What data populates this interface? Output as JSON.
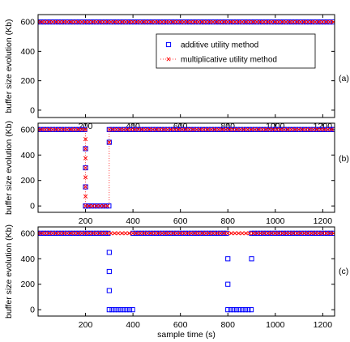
{
  "chart_data": [
    {
      "type": "scatter",
      "panel_label": "(a)",
      "xlim": [
        0,
        1250
      ],
      "ylim": [
        -50,
        650
      ],
      "xticks": [
        200,
        400,
        600,
        800,
        1000,
        1200
      ],
      "yticks": [
        0,
        200,
        400,
        600
      ],
      "ylabel": "buffer size evolution (Kb)",
      "xlabel": "",
      "legend": {
        "placement": "top-right",
        "entries": [
          "additive utility method",
          "multiplicative utility method"
        ]
      },
      "series": [
        {
          "name": "additive utility method",
          "marker": "square",
          "color": "#0000ff",
          "segments": [
            {
              "x": [
                0,
                1250
              ],
              "y": 600
            }
          ],
          "points": []
        },
        {
          "name": "multiplicative utility method",
          "marker": "x",
          "color": "#ff0000",
          "segments": [
            {
              "x": [
                0,
                1250
              ],
              "y": 600
            }
          ],
          "points": []
        }
      ]
    },
    {
      "type": "scatter",
      "panel_label": "(b)",
      "xlim": [
        0,
        1250
      ],
      "ylim": [
        -50,
        650
      ],
      "xticks": [
        200,
        400,
        600,
        800,
        1000,
        1200
      ],
      "yticks": [
        0,
        200,
        400,
        600
      ],
      "ylabel": "buffer size evolution (Kb)",
      "xlabel": "",
      "series": [
        {
          "name": "additive utility method",
          "marker": "square",
          "color": "#0000ff",
          "segments": [
            {
              "x": [
                0,
                200
              ],
              "y": 600
            },
            {
              "x": [
                200,
                300
              ],
              "y": 0
            },
            {
              "x": [
                300,
                1250
              ],
              "y": 600
            }
          ],
          "points": [
            [
              200,
              450
            ],
            [
              200,
              300
            ],
            [
              200,
              150
            ],
            [
              200,
              0
            ],
            [
              300,
              500
            ]
          ]
        },
        {
          "name": "multiplicative utility method",
          "marker": "x",
          "color": "#ff0000",
          "segments": [
            {
              "x": [
                0,
                200
              ],
              "y": 600
            },
            {
              "x": [
                200,
                300
              ],
              "y": 0
            },
            {
              "x": [
                300,
                1250
              ],
              "y": 600
            }
          ],
          "points": [
            [
              200,
              525
            ],
            [
              200,
              450
            ],
            [
              200,
              375
            ],
            [
              200,
              300
            ],
            [
              200,
              225
            ],
            [
              200,
              150
            ],
            [
              200,
              75
            ],
            [
              300,
              500
            ]
          ]
        }
      ]
    },
    {
      "type": "scatter",
      "panel_label": "(c)",
      "xlim": [
        0,
        1250
      ],
      "ylim": [
        -50,
        650
      ],
      "xticks": [
        200,
        400,
        600,
        800,
        1000,
        1200
      ],
      "yticks": [
        0,
        200,
        400,
        600
      ],
      "ylabel": "buffer size evolution (Kb)",
      "xlabel": "sample time (s)",
      "series": [
        {
          "name": "additive utility method",
          "marker": "square",
          "color": "#0000ff",
          "segments": [
            {
              "x": [
                0,
                300
              ],
              "y": 600
            },
            {
              "x": [
                300,
                400
              ],
              "y": 0
            },
            {
              "x": [
                400,
                800
              ],
              "y": 600
            },
            {
              "x": [
                800,
                900
              ],
              "y": 0
            },
            {
              "x": [
                900,
                1250
              ],
              "y": 600
            }
          ],
          "points": [
            [
              300,
              450
            ],
            [
              300,
              300
            ],
            [
              300,
              150
            ],
            [
              800,
              400
            ],
            [
              800,
              200
            ],
            [
              900,
              400
            ]
          ]
        },
        {
          "name": "multiplicative utility method",
          "marker": "x",
          "color": "#ff0000",
          "segments": [
            {
              "x": [
                0,
                1250
              ],
              "y": 600
            }
          ],
          "points": []
        }
      ]
    }
  ]
}
